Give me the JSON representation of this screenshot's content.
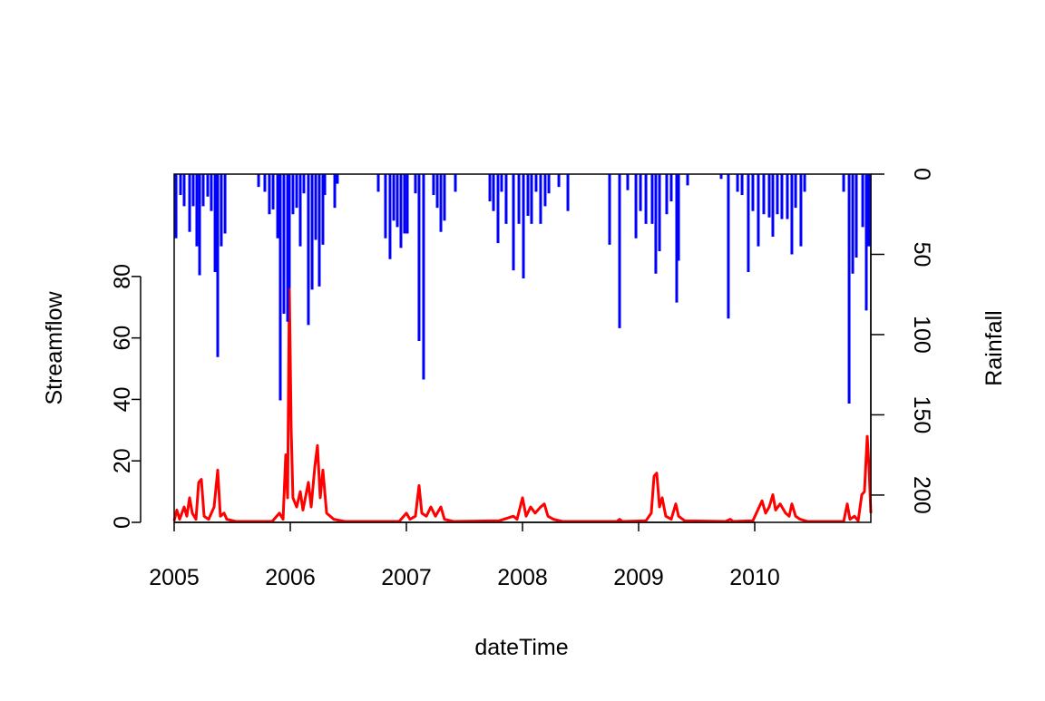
{
  "chart_data": {
    "type": "combo",
    "xlabel": "dateTime",
    "ylabel": "Streamflow",
    "y2label": "Rainfall",
    "xlim": [
      2005,
      2011
    ],
    "xticks": [
      2005,
      2006,
      2007,
      2008,
      2009,
      2010
    ],
    "ylim": [
      0,
      113.3
    ],
    "yticks": [
      0,
      20,
      40,
      60,
      80
    ],
    "y2lim": [
      217,
      0
    ],
    "y2ticks": [
      0,
      50,
      100,
      150,
      200
    ],
    "series": [
      {
        "type": "line",
        "axis": "y",
        "color": "#ff0000",
        "x": [
          2005,
          2005.023,
          2005.047,
          2005.086,
          2005.109,
          2005.133,
          2005.156,
          2005.188,
          2005.211,
          2005.234,
          2005.258,
          2005.297,
          2005.344,
          2005.375,
          2005.398,
          2005.43,
          2005.453,
          2005.531,
          2005.844,
          2005.906,
          2005.938,
          2005.961,
          2005.977,
          2005.992,
          2006.008,
          2006.023,
          2006.055,
          2006.086,
          2006.109,
          2006.156,
          2006.18,
          2006.211,
          2006.234,
          2006.258,
          2006.281,
          2006.313,
          2006.375,
          2006.469,
          2006.938,
          2007,
          2007.031,
          2007.078,
          2007.109,
          2007.133,
          2007.172,
          2007.211,
          2007.25,
          2007.297,
          2007.328,
          2007.406,
          2007.797,
          2007.922,
          2007.953,
          2008,
          2008.031,
          2008.07,
          2008.109,
          2008.156,
          2008.188,
          2008.219,
          2008.266,
          2008.344,
          2008.813,
          2008.836,
          2008.859,
          2009.063,
          2009.109,
          2009.133,
          2009.156,
          2009.18,
          2009.203,
          2009.234,
          2009.281,
          2009.32,
          2009.344,
          2009.398,
          2009.75,
          2009.789,
          2009.813,
          2009.984,
          2010.063,
          2010.094,
          2010.125,
          2010.156,
          2010.18,
          2010.219,
          2010.266,
          2010.297,
          2010.32,
          2010.352,
          2010.391,
          2010.453,
          2010.766,
          2010.797,
          2010.82,
          2010.859,
          2010.891,
          2010.922,
          2010.945,
          2010.969,
          2010.984,
          2011
        ],
        "values": [
          0.5,
          4,
          1,
          5,
          2,
          8,
          3,
          1,
          13,
          14,
          2,
          1,
          5,
          17,
          2,
          3,
          1,
          0.3,
          0.3,
          3,
          1,
          22,
          8,
          76,
          30,
          8,
          5,
          10,
          4,
          13,
          5,
          18,
          25,
          8,
          17,
          3,
          1,
          0.3,
          0.3,
          3,
          1,
          2,
          12,
          3,
          2,
          5,
          2,
          5,
          1,
          0.3,
          0.5,
          2,
          1,
          8,
          2,
          5,
          3,
          5,
          6,
          2,
          1,
          0.3,
          0.3,
          1,
          0.3,
          0.5,
          3,
          15,
          16,
          5,
          8,
          2,
          1,
          6,
          2,
          0.5,
          0.3,
          1,
          0.3,
          0.5,
          7,
          3,
          5,
          9,
          4,
          6,
          3,
          2,
          6,
          2,
          1,
          0.3,
          0.3,
          6,
          1,
          2,
          0.5,
          9,
          10,
          28,
          18,
          3
        ]
      },
      {
        "type": "bar",
        "axis": "y2",
        "color": "#0000ff",
        "x": [
          2005.016,
          2005.055,
          2005.086,
          2005.133,
          2005.164,
          2005.195,
          2005.219,
          2005.25,
          2005.289,
          2005.32,
          2005.352,
          2005.375,
          2005.406,
          2005.438,
          2005.727,
          2005.781,
          2005.82,
          2005.852,
          2005.891,
          2005.914,
          2005.945,
          2005.977,
          2005.992,
          2006.023,
          2006.055,
          2006.086,
          2006.117,
          2006.156,
          2006.188,
          2006.219,
          2006.25,
          2006.281,
          2006.297,
          2006.383,
          2006.406,
          2006.758,
          2006.82,
          2006.859,
          2006.891,
          2006.922,
          2006.953,
          2006.984,
          2007.008,
          2007.078,
          2007.109,
          2007.148,
          2007.234,
          2007.266,
          2007.297,
          2007.328,
          2007.422,
          2007.719,
          2007.75,
          2007.789,
          2007.82,
          2007.859,
          2007.922,
          2007.969,
          2008.008,
          2008.047,
          2008.078,
          2008.117,
          2008.156,
          2008.195,
          2008.227,
          2008.313,
          2008.391,
          2008.75,
          2008.836,
          2008.906,
          2008.977,
          2009.016,
          2009.063,
          2009.117,
          2009.148,
          2009.18,
          2009.242,
          2009.281,
          2009.328,
          2009.344,
          2009.422,
          2009.711,
          2009.773,
          2009.852,
          2009.891,
          2009.945,
          2009.984,
          2010.031,
          2010.078,
          2010.125,
          2010.156,
          2010.195,
          2010.234,
          2010.281,
          2010.32,
          2010.352,
          2010.398,
          2010.43,
          2010.766,
          2010.813,
          2010.844,
          2010.875,
          2010.93,
          2010.961,
          2010.984
        ],
        "values": [
          40,
          13,
          20,
          36,
          20,
          45,
          63,
          20,
          14,
          23,
          61,
          114,
          45,
          37,
          8,
          11,
          25,
          22,
          40,
          141,
          87,
          92,
          71,
          25,
          21,
          45,
          12,
          94,
          72,
          41,
          70,
          44,
          13,
          21,
          6,
          11,
          40,
          53,
          29,
          33,
          46,
          37,
          37,
          12,
          104,
          128,
          13,
          21,
          36,
          29,
          11,
          17,
          23,
          43,
          11,
          31,
          60,
          31,
          65,
          26,
          31,
          11,
          31,
          20,
          12,
          8,
          23,
          44,
          96,
          10,
          40,
          23,
          31,
          31,
          62,
          48,
          25,
          17,
          80,
          54,
          7,
          3,
          90,
          11,
          13,
          61,
          23,
          45,
          25,
          27,
          39,
          25,
          28,
          28,
          50,
          21,
          45,
          11,
          11,
          143,
          62,
          52,
          33,
          85,
          45
        ]
      }
    ]
  }
}
